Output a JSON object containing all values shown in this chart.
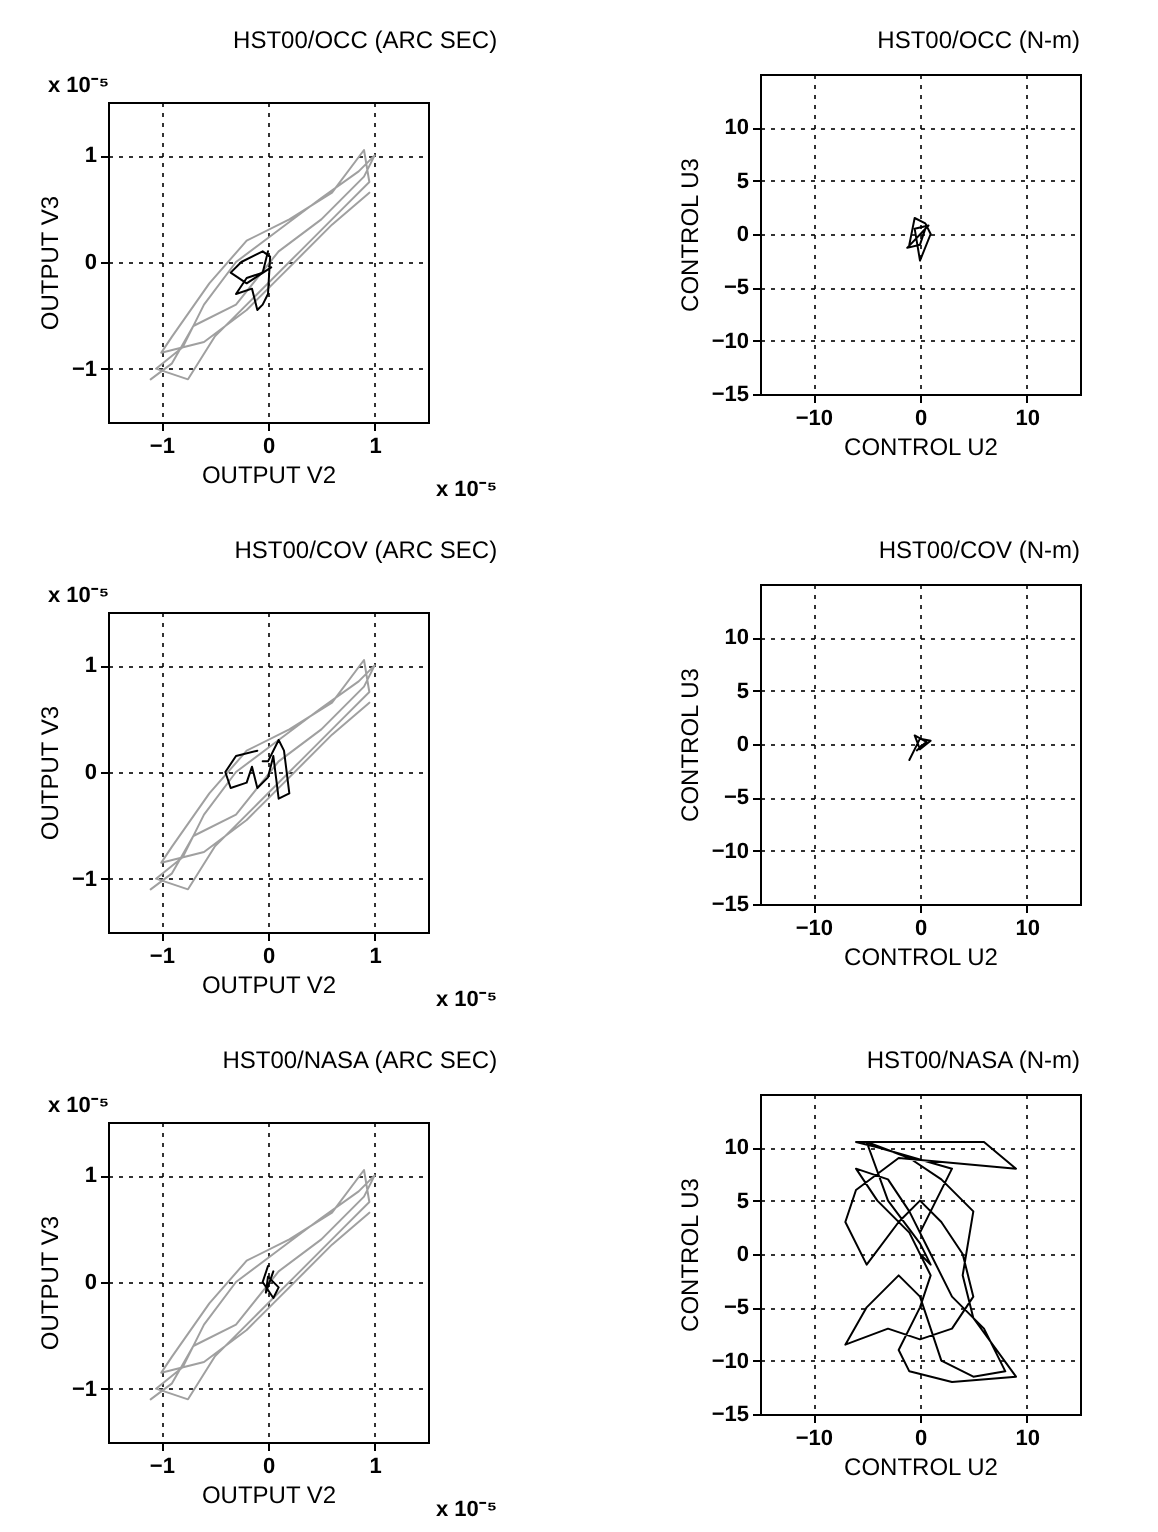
{
  "chart_data": [
    {
      "type": "line",
      "title": "HST00/OCC (ARC SEC)",
      "xlabel": "OUTPUT V2",
      "ylabel": "OUTPUT V3",
      "xlim": [
        -1.5,
        1.5
      ],
      "ylim": [
        -1.5,
        1.5
      ],
      "xticks": [
        -1,
        0,
        1
      ],
      "yticks": [
        -1,
        0,
        1
      ],
      "grid": true,
      "line_style": "solid",
      "annotations": [
        "x 10⁻⁵",
        "x 10⁻⁵"
      ],
      "series": [
        {
          "color": "#a0a0a0",
          "x": [
            -1.1,
            -0.9,
            -0.7,
            -0.3,
            0.1,
            0.5,
            0.9,
            1.0,
            0.85,
            0.5,
            0.1,
            -0.3,
            -0.6,
            -0.8,
            -1.05,
            -0.75,
            -0.5,
            -0.1,
            0.3,
            0.7,
            0.95,
            0.9,
            0.6,
            0.2,
            -0.2,
            -0.55,
            -0.9,
            -1.0,
            -0.6,
            -0.2,
            0.2,
            0.6,
            0.95
          ],
          "values": [
            -1.1,
            -0.95,
            -0.6,
            -0.4,
            0.1,
            0.4,
            0.8,
            1.0,
            0.85,
            0.6,
            0.3,
            0.0,
            -0.4,
            -0.8,
            -1.0,
            -1.1,
            -0.7,
            -0.3,
            0.1,
            0.5,
            0.75,
            1.05,
            0.65,
            0.4,
            0.2,
            -0.2,
            -0.7,
            -0.85,
            -0.75,
            -0.45,
            -0.05,
            0.35,
            0.65
          ]
        },
        {
          "color": "#000000",
          "x": [
            0,
            -0.05,
            -0.2,
            -0.3,
            -0.15,
            -0.1,
            -0.05,
            0,
            0.02,
            -0.05,
            -0.25,
            -0.35,
            -0.2,
            0.03
          ],
          "values": [
            0.1,
            -0.1,
            -0.15,
            -0.3,
            -0.25,
            -0.45,
            -0.4,
            -0.3,
            0.05,
            0.1,
            0,
            -0.1,
            -0.2,
            -0.05
          ]
        }
      ]
    },
    {
      "type": "line",
      "title": "HST00/OCC (N-m)",
      "xlabel": "CONTROL U2",
      "ylabel": "CONTROL U3",
      "xlim": [
        -15,
        15
      ],
      "ylim": [
        -15,
        15
      ],
      "xticks": [
        -10,
        0,
        10
      ],
      "yticks": [
        -15,
        -10,
        -5,
        0,
        5,
        10
      ],
      "grid": true,
      "line_style": "solid",
      "series": [
        {
          "color": "#000000",
          "x": [
            -1,
            -0.5,
            0.5,
            1,
            0,
            -0.5,
            0.8,
            -1.2,
            0,
            0.5
          ],
          "values": [
            -1,
            1.5,
            1,
            0,
            -2.5,
            0.5,
            0.8,
            -1.3,
            -1,
            0.5
          ]
        }
      ]
    },
    {
      "type": "line",
      "title": "HST00/COV (ARC SEC)",
      "xlabel": "OUTPUT V2",
      "ylabel": "OUTPUT V3",
      "xlim": [
        -1.5,
        1.5
      ],
      "ylim": [
        -1.5,
        1.5
      ],
      "xticks": [
        -1,
        0,
        1
      ],
      "yticks": [
        -1,
        0,
        1
      ],
      "grid": true,
      "line_style": "solid",
      "annotations": [
        "x 10⁻⁵",
        "x 10⁻⁵"
      ],
      "series": [
        {
          "color": "#a0a0a0",
          "x": [
            -1.1,
            -0.9,
            -0.7,
            -0.3,
            0.1,
            0.5,
            0.9,
            1.0,
            0.85,
            0.5,
            0.1,
            -0.3,
            -0.6,
            -0.8,
            -1.05,
            -0.75,
            -0.5,
            -0.1,
            0.3,
            0.7,
            0.95,
            0.9,
            0.6,
            0.2,
            -0.2,
            -0.55,
            -0.9,
            -1.0,
            -0.6,
            -0.2,
            0.2,
            0.6,
            0.95
          ],
          "values": [
            -1.1,
            -0.95,
            -0.6,
            -0.4,
            0.1,
            0.4,
            0.8,
            1.0,
            0.85,
            0.6,
            0.3,
            0.0,
            -0.4,
            -0.8,
            -1.0,
            -1.1,
            -0.7,
            -0.3,
            0.1,
            0.5,
            0.75,
            1.05,
            0.65,
            0.4,
            0.2,
            -0.2,
            -0.7,
            -0.85,
            -0.75,
            -0.45,
            -0.05,
            0.35,
            0.65
          ]
        },
        {
          "color": "#000000",
          "x": [
            -0.1,
            -0.3,
            -0.4,
            -0.35,
            -0.2,
            -0.15,
            -0.1,
            0,
            0.05,
            0.1,
            0.2,
            0.15,
            0.1,
            0,
            -0.05
          ],
          "values": [
            0.2,
            0.15,
            0,
            -0.15,
            -0.1,
            0.05,
            -0.15,
            -0.05,
            0.15,
            -0.25,
            -0.2,
            0.2,
            0.3,
            0.1,
            0.1
          ]
        }
      ]
    },
    {
      "type": "line",
      "title": "HST00/COV (N-m)",
      "xlabel": "CONTROL U2",
      "ylabel": "CONTROL U3",
      "xlim": [
        -15,
        15
      ],
      "ylim": [
        -15,
        15
      ],
      "xticks": [
        -10,
        0,
        10
      ],
      "yticks": [
        -15,
        -10,
        -5,
        0,
        5,
        10
      ],
      "grid": true,
      "line_style": "solid",
      "series": [
        {
          "color": "#000000",
          "x": [
            -1,
            0,
            1,
            0,
            -0.5,
            0.6,
            -0.3
          ],
          "values": [
            -1.5,
            0.5,
            0.3,
            -0.5,
            0.8,
            0.2,
            -0.6
          ]
        }
      ]
    },
    {
      "type": "line",
      "title": "HST00/NASA (ARC SEC)",
      "xlabel": "OUTPUT V2",
      "ylabel": "OUTPUT V3",
      "xlim": [
        -1.5,
        1.5
      ],
      "ylim": [
        -1.5,
        1.5
      ],
      "xticks": [
        -1,
        0,
        1
      ],
      "yticks": [
        -1,
        0,
        1
      ],
      "grid": true,
      "line_style": "solid",
      "annotations": [
        "x 10⁻⁵",
        "x 10⁻⁵"
      ],
      "series": [
        {
          "color": "#a0a0a0",
          "x": [
            -1.1,
            -0.9,
            -0.7,
            -0.3,
            0.1,
            0.5,
            0.9,
            1.0,
            0.85,
            0.5,
            0.1,
            -0.3,
            -0.6,
            -0.8,
            -1.05,
            -0.75,
            -0.5,
            -0.1,
            0.3,
            0.7,
            0.95,
            0.9,
            0.6,
            0.2,
            -0.2,
            -0.55,
            -0.9,
            -1.0,
            -0.6,
            -0.2,
            0.2,
            0.6,
            0.95
          ],
          "values": [
            -1.1,
            -0.95,
            -0.6,
            -0.4,
            0.1,
            0.4,
            0.8,
            1.0,
            0.85,
            0.6,
            0.3,
            0.0,
            -0.4,
            -0.8,
            -1.0,
            -1.1,
            -0.7,
            -0.3,
            0.1,
            0.5,
            0.75,
            1.05,
            0.65,
            0.4,
            0.2,
            -0.2,
            -0.7,
            -0.85,
            -0.75,
            -0.45,
            -0.05,
            0.35,
            0.65
          ]
        },
        {
          "color": "#000000",
          "x": [
            0,
            -0.05,
            0.05,
            0.1,
            0,
            -0.02,
            0.05
          ],
          "values": [
            0.15,
            0,
            -0.15,
            -0.05,
            0.05,
            -0.1,
            0.1
          ]
        }
      ]
    },
    {
      "type": "line",
      "title": "HST00/NASA (N-m)",
      "xlabel": "CONTROL U2",
      "ylabel": "CONTROL U3",
      "xlim": [
        -15,
        15
      ],
      "ylim": [
        -15,
        15
      ],
      "xticks": [
        -10,
        0,
        10
      ],
      "yticks": [
        -15,
        -10,
        -5,
        0,
        5,
        10
      ],
      "grid": true,
      "line_style": "solid",
      "series": [
        {
          "color": "#000000",
          "x": [
            0,
            3,
            -4,
            -6,
            6,
            9,
            -2,
            -6,
            -7,
            -5,
            -2,
            0,
            2,
            4,
            5,
            3,
            0,
            -3,
            -7,
            -5,
            -2,
            0,
            2,
            5,
            8,
            6,
            3,
            1,
            -1,
            -3,
            -6,
            -4,
            -1,
            1,
            0,
            -2,
            -1,
            3,
            9,
            5,
            4,
            5,
            2,
            -1,
            -5,
            -3,
            0,
            1,
            0
          ],
          "values": [
            2,
            8,
            10,
            10.5,
            10.5,
            8,
            9,
            6,
            3,
            -1,
            3,
            5,
            3,
            0,
            -4,
            -7,
            -8,
            -7,
            -8.5,
            -5,
            -2,
            -4,
            -10,
            -11.5,
            -11,
            -7,
            -4,
            0,
            4,
            7,
            8,
            5,
            2,
            -2,
            -5,
            -9,
            -11,
            -12,
            -11.5,
            -6,
            -2,
            4,
            7,
            9,
            10.5,
            5,
            1,
            -1,
            0
          ]
        }
      ]
    }
  ]
}
